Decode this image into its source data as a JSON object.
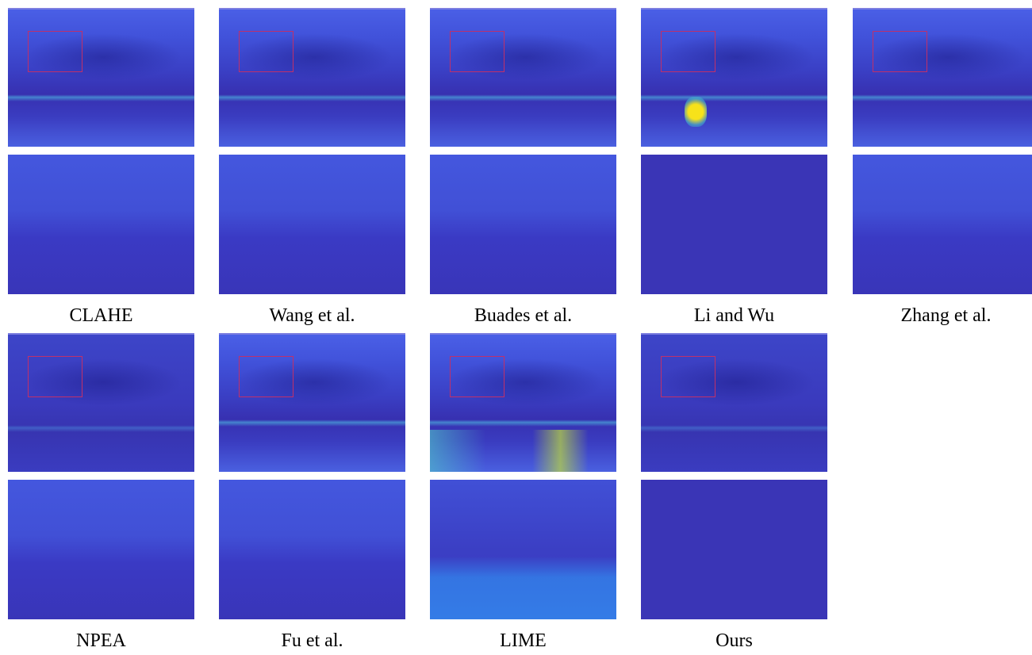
{
  "figure": {
    "panels": [
      {
        "label": "CLAHE"
      },
      {
        "label": "Wang et al."
      },
      {
        "label": "Buades et al."
      },
      {
        "label": "Li and Wu"
      },
      {
        "label": "Zhang et al."
      },
      {
        "label": "NPEA"
      },
      {
        "label": "Fu et al."
      },
      {
        "label": "LIME"
      },
      {
        "label": "Ours"
      }
    ]
  }
}
